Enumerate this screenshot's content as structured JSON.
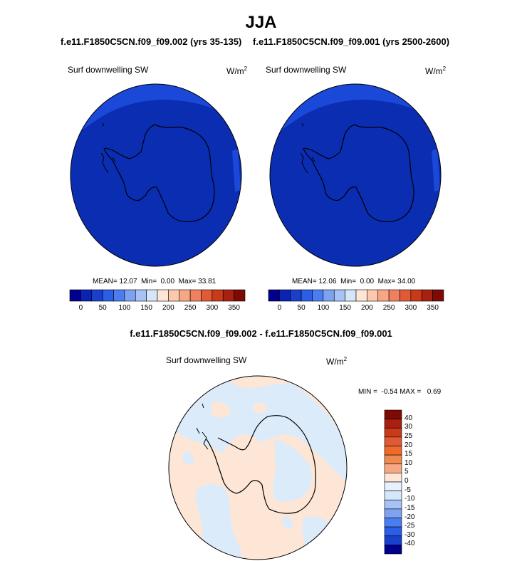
{
  "title": "JJA",
  "panels": [
    {
      "header": "f.e11.F1850C5CN.f09_f09.002 (yrs 35-135)",
      "variable": "Surf downwelling SW",
      "units": "W/m",
      "units_exp": "2",
      "mean_label": "MEAN=",
      "mean": "12.07",
      "min_label": "Min=",
      "min": "0.00",
      "max_label": "Max=",
      "max": "33.81"
    },
    {
      "header": "f.e11.F1850C5CN.f09_f09.001 (yrs 2500-2600)",
      "variable": "Surf downwelling SW",
      "units": "W/m",
      "units_exp": "2",
      "mean_label": "MEAN=",
      "mean": "12.06",
      "min_label": "Min=",
      "min": "0.00",
      "max_label": "Max=",
      "max": "34.00"
    }
  ],
  "difference": {
    "header": "f.e11.F1850C5CN.f09_f09.002 - f.e11.F1850C5CN.f09_f09.001",
    "variable": "Surf downwelling SW",
    "units": "W/m",
    "units_exp": "2",
    "min_label": "MIN =",
    "min": "-0.54",
    "max_label": "MAX =",
    "max": "0.69"
  },
  "colorbar_abs": {
    "tick_labels": [
      "0",
      "50",
      "100",
      "150",
      "200",
      "250",
      "300",
      "350"
    ],
    "colors": [
      "#00008c",
      "#0a23b4",
      "#1a3fcc",
      "#2a5ee6",
      "#4a7df0",
      "#7ea2f2",
      "#a7c3f5",
      "#d5e6fa",
      "#fde6d6",
      "#fdc9ae",
      "#f8a784",
      "#f08060",
      "#e05a36",
      "#c83a18",
      "#a82010",
      "#7e0a06"
    ]
  },
  "colorbar_diff": {
    "tick_labels": [
      "40",
      "30",
      "25",
      "20",
      "15",
      "10",
      "5",
      "0",
      "-5",
      "-10",
      "-15",
      "-20",
      "-25",
      "-30",
      "-40"
    ],
    "colors": [
      "#7e0a06",
      "#a82010",
      "#c83a18",
      "#e05a36",
      "#f06a2a",
      "#f08a50",
      "#f8a784",
      "#fde6d6",
      "#e8f0fb",
      "#d5e6fa",
      "#a7c3f5",
      "#7ea2f2",
      "#4a7df0",
      "#2a5ee6",
      "#1a3fcc",
      "#00008c"
    ]
  },
  "map_colors": {
    "deep_blue": "#0a2db2",
    "ocean_blue": "#1a48d8",
    "diff_warm": "#fde6d6",
    "diff_cool": "#dcebfa"
  }
}
